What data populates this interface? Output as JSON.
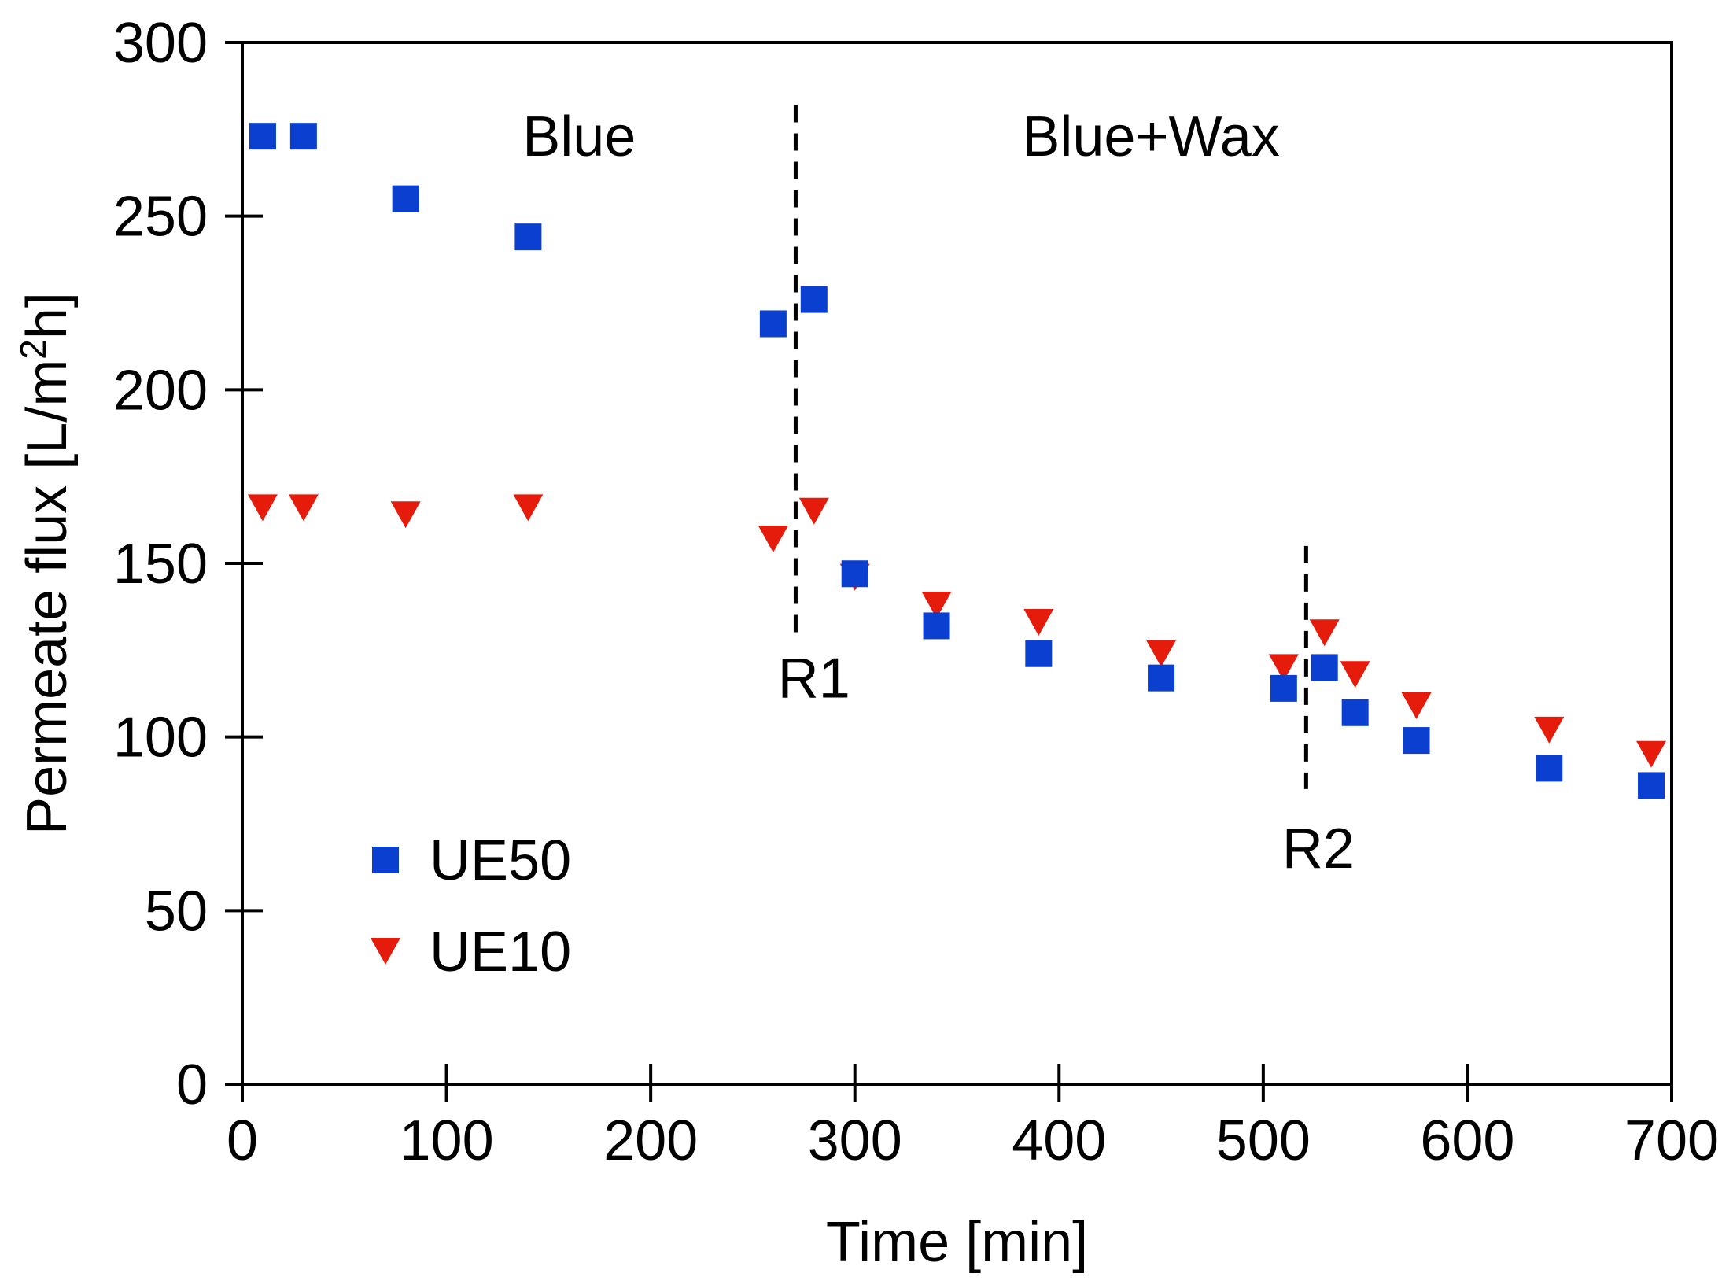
{
  "chart_data": {
    "type": "scatter",
    "title": "",
    "xlabel": "Time [min]",
    "ylabel_main": "Permeate flux [L/m",
    "ylabel_sup": "2",
    "ylabel_end": "h]",
    "xlim": [
      0,
      700
    ],
    "ylim": [
      0,
      300
    ],
    "xticks": [
      0,
      100,
      200,
      300,
      400,
      500,
      600,
      700
    ],
    "yticks": [
      0,
      50,
      100,
      150,
      200,
      250,
      300
    ],
    "grid": false,
    "legend_position": "lower-left",
    "series": [
      {
        "name": "UE50",
        "marker": "square",
        "color": "#0a3fcf",
        "x": [
          10,
          30,
          80,
          140,
          260,
          280,
          300,
          340,
          390,
          450,
          510,
          530,
          545,
          575,
          640,
          690
        ],
        "y": [
          273,
          273,
          255,
          244,
          219,
          226,
          147,
          132,
          124,
          117,
          114,
          120,
          107,
          99,
          91,
          86
        ]
      },
      {
        "name": "UE10",
        "marker": "triangle-down",
        "color": "#e51b0c",
        "x": [
          10,
          30,
          80,
          140,
          260,
          280,
          300,
          340,
          390,
          450,
          510,
          530,
          545,
          575,
          640,
          690
        ],
        "y": [
          166,
          166,
          164,
          166,
          157,
          165,
          146,
          138,
          133,
          124,
          120,
          130,
          118,
          109,
          102,
          95
        ]
      }
    ],
    "annotations": [
      {
        "text": "Blue",
        "x": 165,
        "y": 273
      },
      {
        "text": "Blue+Wax",
        "x": 445,
        "y": 273
      },
      {
        "text": "R1",
        "x": 280,
        "y": 117
      },
      {
        "text": "R2",
        "x": 527,
        "y": 68
      }
    ],
    "vlines": [
      {
        "name": "R1",
        "x": 271,
        "y_range": [
          130,
          282
        ],
        "style": "dashed"
      },
      {
        "name": "R2",
        "x": 521,
        "y_range": [
          85,
          155
        ],
        "style": "dashed"
      }
    ]
  }
}
